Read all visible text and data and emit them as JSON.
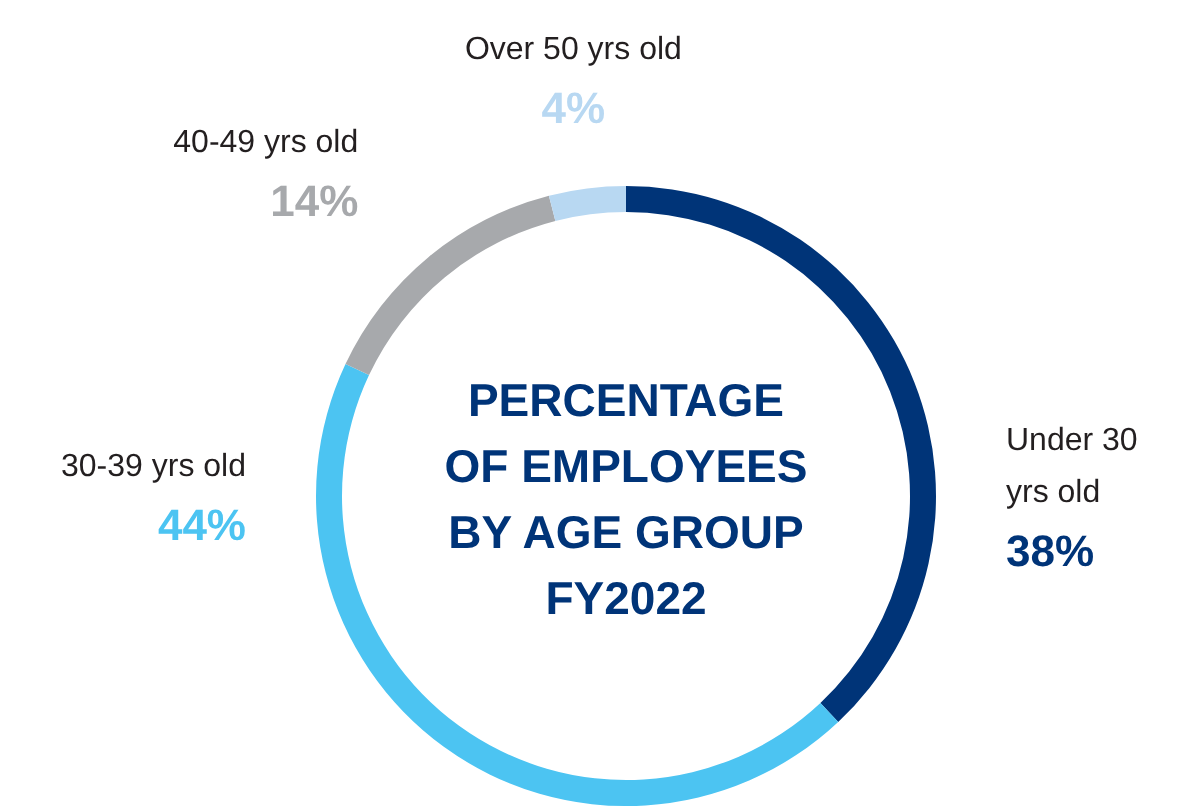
{
  "chart_data": {
    "type": "donut",
    "title": "PERCENTAGE OF EMPLOYEES BY AGE GROUP FY2022",
    "categories": [
      "Under 30 yrs old",
      "30-39 yrs old",
      "40-49 yrs old",
      "Over 50 yrs old"
    ],
    "values": [
      38,
      44,
      14,
      4
    ],
    "value_labels": [
      "38%",
      "44%",
      "14%",
      "4%"
    ],
    "colors": [
      "#003478",
      "#4cc4f2",
      "#a7a9ac",
      "#b8d8f2"
    ],
    "legend": false
  }
}
